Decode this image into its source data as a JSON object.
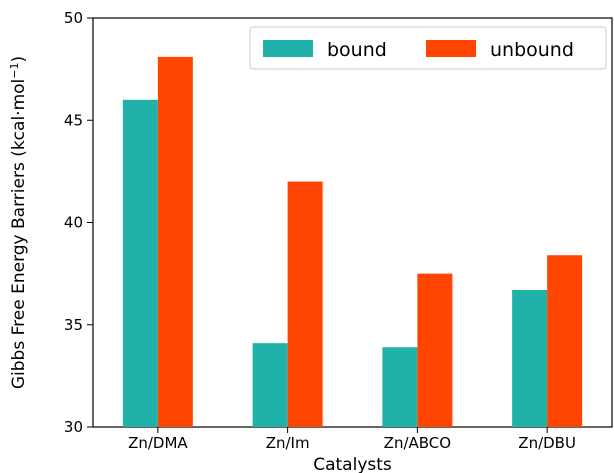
{
  "chart_data": {
    "type": "bar",
    "categories": [
      "Zn/DMA",
      "Zn/Im",
      "Zn/ABCO",
      "Zn/DBU"
    ],
    "series": [
      {
        "name": "bound",
        "values": [
          46.0,
          34.1,
          33.9,
          36.7
        ],
        "color": "#20b2aa"
      },
      {
        "name": "unbound",
        "values": [
          48.1,
          42.0,
          37.5,
          38.4
        ],
        "color": "#ff4500"
      }
    ],
    "xlabel": "Catalysts",
    "ylabel_main": "Gibbs Free Energy Barriers (kcal·mol",
    "ylabel_sup": "−1",
    "ylabel_close": ")",
    "ylim": [
      30,
      50
    ],
    "yticks": [
      30,
      35,
      40,
      45,
      50
    ],
    "legend_position": "top-right",
    "grid": false
  }
}
